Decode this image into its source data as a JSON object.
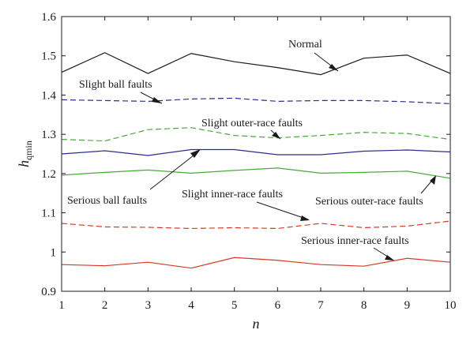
{
  "chart_data": {
    "type": "line",
    "xlabel": "n",
    "ylabel_main": "h",
    "ylabel_sub": "qmin",
    "xlim": [
      1,
      10
    ],
    "ylim": [
      0.9,
      1.6
    ],
    "xticks": [
      "1",
      "2",
      "3",
      "4",
      "5",
      "6",
      "7",
      "8",
      "9",
      "10"
    ],
    "yticks": [
      "0.9",
      "1",
      "1.1",
      "1.2",
      "1.3",
      "1.4",
      "1.5",
      "1.6"
    ],
    "grid": false,
    "x": [
      1,
      2,
      3,
      4,
      5,
      6,
      7,
      8,
      9,
      10
    ],
    "series": [
      {
        "name": "Normal",
        "color": "#1a1a1a",
        "dash": "solid",
        "values": [
          1.458,
          1.508,
          1.455,
          1.506,
          1.485,
          1.47,
          1.452,
          1.494,
          1.502,
          1.455
        ]
      },
      {
        "name": "Slight ball faults",
        "color": "#2b2e8c",
        "dash": "dashed",
        "values": [
          1.388,
          1.386,
          1.384,
          1.39,
          1.392,
          1.384,
          1.386,
          1.386,
          1.383,
          1.378
        ]
      },
      {
        "name": "Slight outer-race faults",
        "color": "#4aa83b",
        "dash": "dashed",
        "values": [
          1.287,
          1.283,
          1.312,
          1.317,
          1.297,
          1.291,
          1.297,
          1.305,
          1.302,
          1.287
        ]
      },
      {
        "name": "Serious ball faults",
        "color": "#2b2e8c",
        "dash": "solid",
        "values": [
          1.25,
          1.258,
          1.246,
          1.261,
          1.261,
          1.248,
          1.248,
          1.257,
          1.26,
          1.255
        ]
      },
      {
        "name": "Serious outer-race faults",
        "color": "#4aa83b",
        "dash": "solid",
        "values": [
          1.196,
          1.203,
          1.209,
          1.201,
          1.208,
          1.214,
          1.201,
          1.203,
          1.206,
          1.188
        ]
      },
      {
        "name": "Slight inner-race faults",
        "color": "#d63a25",
        "dash": "dashed",
        "values": [
          1.073,
          1.064,
          1.063,
          1.06,
          1.062,
          1.06,
          1.073,
          1.062,
          1.066,
          1.079
        ]
      },
      {
        "name": "Serious inner-race faults",
        "color": "#d63a25",
        "dash": "solid",
        "values": [
          0.968,
          0.965,
          0.974,
          0.959,
          0.986,
          0.979,
          0.968,
          0.964,
          0.984,
          0.974
        ]
      }
    ],
    "annotations": [
      {
        "text": "Normal",
        "series": "Normal"
      },
      {
        "text": "Slight ball faults",
        "series": "Slight ball faults"
      },
      {
        "text": "Slight outer-race faults",
        "series": "Slight outer-race faults"
      },
      {
        "text": "Serious ball faults",
        "series": "Serious ball faults"
      },
      {
        "text": "Slight inner-race faults",
        "series": "Slight inner-race faults"
      },
      {
        "text": "Serious outer-race faults",
        "series": "Serious outer-race faults"
      },
      {
        "text": "Serious inner-race faults",
        "series": "Serious inner-race faults"
      }
    ]
  }
}
